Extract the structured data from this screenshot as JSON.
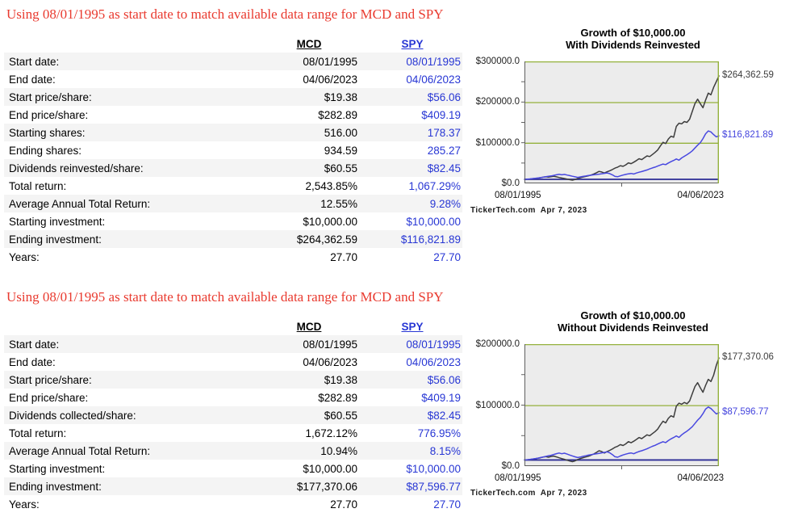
{
  "colors": {
    "title_red": "#e93a2f",
    "spy_text_blue": "#2736d4",
    "row_alt_gray": "#f4f4f4",
    "plot_background": "#ececec",
    "grid_green": "#94b13c",
    "mcd_line": "#3d3d3d",
    "spy_line": "#4848e0",
    "baseline_navy": "#2d2d96",
    "axis_gray": "#606060",
    "mcd_label_gray": "#3c3c3c",
    "spy_label_blue": "#4343dd"
  },
  "sections": [
    {
      "title": "Using 08/01/1995 as start date to match available data range for MCD and SPY",
      "table": {
        "columns": [
          "MCD",
          "SPY"
        ],
        "rows": [
          [
            "Start date:",
            "08/01/1995",
            "08/01/1995"
          ],
          [
            "End date:",
            "04/06/2023",
            "04/06/2023"
          ],
          [
            "Start price/share:",
            "$19.38",
            "$56.06"
          ],
          [
            "End price/share:",
            "$282.89",
            "$409.19"
          ],
          [
            "Starting shares:",
            "516.00",
            "178.37"
          ],
          [
            "Ending shares:",
            "934.59",
            "285.27"
          ],
          [
            "Dividends reinvested/share:",
            "$60.55",
            "$82.45"
          ],
          [
            "Total return:",
            "2,543.85%",
            "1,067.29%"
          ],
          [
            "Average Annual Total Return:",
            "12.55%",
            "9.28%"
          ],
          [
            "Starting investment:",
            "$10,000.00",
            "$10,000.00"
          ],
          [
            "Ending investment:",
            "$264,362.59",
            "$116,821.89"
          ],
          [
            "Years:",
            "27.70",
            "27.70"
          ]
        ]
      }
    },
    {
      "title": "Using 08/01/1995 as start date to match available data range for MCD and SPY",
      "table": {
        "columns": [
          "MCD",
          "SPY"
        ],
        "rows": [
          [
            "Start date:",
            "08/01/1995",
            "08/01/1995"
          ],
          [
            "End date:",
            "04/06/2023",
            "04/06/2023"
          ],
          [
            "Start price/share:",
            "$19.38",
            "$56.06"
          ],
          [
            "End price/share:",
            "$282.89",
            "$409.19"
          ],
          [
            "Dividends collected/share:",
            "$60.55",
            "$82.45"
          ],
          [
            "Total return:",
            "1,672.12%",
            "776.95%"
          ],
          [
            "Average Annual Total Return:",
            "10.94%",
            "8.15%"
          ],
          [
            "Starting investment:",
            "$10,000.00",
            "$10,000.00"
          ],
          [
            "Ending investment:",
            "$177,370.06",
            "$87,596.77"
          ],
          [
            "Years:",
            "27.70",
            "27.70"
          ]
        ]
      }
    }
  ],
  "chart_data": [
    {
      "type": "line",
      "title": "Growth of $10,000.00 With Dividends Reinvested",
      "title_lines": [
        "Growth of $10,000.00",
        "With Dividends Reinvested"
      ],
      "xlabel": "",
      "ylabel": "",
      "x_labels": [
        "08/01/1995",
        "04/06/2023"
      ],
      "ylim": [
        0,
        300000
      ],
      "tick_step": 50000,
      "gridlines": [
        300000,
        200000,
        100000
      ],
      "grid": true,
      "legend_position": "none",
      "baseline": 10000,
      "y_ticks": [
        {
          "label": "$300000.0",
          "value": 300000
        },
        {
          "label": "$200000.0",
          "value": 200000
        },
        {
          "label": "$100000.0",
          "value": 100000
        },
        {
          "label": "$0.0",
          "value": 0
        }
      ],
      "end_labels": [
        {
          "text": "$264,362.59",
          "value": 264363,
          "color": "#3c3c3c"
        },
        {
          "text": "$116,821.89",
          "value": 116822,
          "color": "#4343dd"
        }
      ],
      "footer": "TickerTech.com  Apr 7, 2023",
      "series": [
        {
          "name": "MCD",
          "color": "#3d3d3d",
          "values": [
            10000,
            10300,
            10800,
            11500,
            12200,
            13000,
            14000,
            15200,
            16000,
            15200,
            16500,
            17200,
            16000,
            14500,
            13200,
            12000,
            10500,
            9200,
            8000,
            9500,
            12000,
            14000,
            15500,
            17000,
            18500,
            20500,
            23000,
            26000,
            29500,
            28000,
            25500,
            28500,
            31000,
            34000,
            37500,
            40000,
            43500,
            42000,
            45500,
            50500,
            48500,
            52000,
            56000,
            60500,
            58500,
            63000,
            67500,
            66000,
            71000,
            76000,
            82000,
            92000,
            101000,
            98000,
            109000,
            116000,
            113500,
            140000,
            148000,
            146500,
            152000,
            150000,
            158000,
            177000,
            196000,
            207000,
            196000,
            186000,
            205000,
            222000,
            218000,
            236000,
            250000,
            264363
          ]
        },
        {
          "name": "SPY",
          "color": "#4848e0",
          "values": [
            10000,
            10400,
            11000,
            11800,
            12400,
            13200,
            14200,
            15000,
            16200,
            17400,
            18200,
            19600,
            21000,
            22200,
            21000,
            22000,
            20500,
            19000,
            17500,
            16000,
            14800,
            15800,
            17000,
            18000,
            19200,
            20000,
            21000,
            21800,
            22600,
            23600,
            24600,
            25600,
            24000,
            21000,
            17000,
            16200,
            18500,
            20500,
            22000,
            23500,
            24500,
            23000,
            25500,
            27500,
            29000,
            31000,
            33000,
            35500,
            38000,
            40000,
            42500,
            45000,
            47500,
            46000,
            50000,
            53500,
            56500,
            60000,
            57000,
            62500,
            66500,
            70500,
            75000,
            80000,
            87000,
            94000,
            100000,
            110000,
            122000,
            129000,
            126500,
            120000,
            114500,
            116822
          ]
        }
      ]
    },
    {
      "type": "line",
      "title": "Growth of $10,000.00 Without Dividends Reinvested",
      "title_lines": [
        "Growth of $10,000.00",
        "Without Dividends Reinvested"
      ],
      "xlabel": "",
      "ylabel": "",
      "x_labels": [
        "08/01/1995",
        "04/06/2023"
      ],
      "ylim": [
        0,
        200000
      ],
      "tick_step": 50000,
      "gridlines": [
        200000,
        100000
      ],
      "grid": true,
      "legend_position": "none",
      "baseline": 10000,
      "y_ticks": [
        {
          "label": "$200000.0",
          "value": 200000
        },
        {
          "label": "$100000.0",
          "value": 100000
        },
        {
          "label": "$0.0",
          "value": 0
        }
      ],
      "end_labels": [
        {
          "text": "$177,370.06",
          "value": 177370,
          "color": "#3c3c3c"
        },
        {
          "text": "$87,596.77",
          "value": 87597,
          "color": "#4343dd"
        }
      ],
      "footer": "TickerTech.com  Apr 7, 2023",
      "series": [
        {
          "name": "MCD",
          "color": "#3d3d3d",
          "values": [
            10000,
            10300,
            10700,
            11400,
            12000,
            12800,
            13700,
            14800,
            15500,
            14600,
            15800,
            16400,
            15100,
            13600,
            12300,
            11100,
            9700,
            8400,
            7300,
            8600,
            10800,
            12500,
            13800,
            15000,
            16200,
            17900,
            19900,
            22400,
            25200,
            23800,
            21500,
            23900,
            25800,
            28100,
            30800,
            32600,
            35200,
            33800,
            36400,
            40100,
            38300,
            40800,
            43700,
            46900,
            45000,
            48200,
            51300,
            49800,
            53200,
            56600,
            60600,
            67500,
            73600,
            70900,
            78300,
            82700,
            80300,
            98300,
            103200,
            101400,
            104400,
            102300,
            106900,
            118800,
            130500,
            136800,
            128500,
            121000,
            132400,
            142300,
            138700,
            149000,
            165000,
            177370
          ]
        },
        {
          "name": "SPY",
          "color": "#4848e0",
          "values": [
            10000,
            10400,
            10900,
            11700,
            12300,
            13000,
            14000,
            14800,
            15900,
            17000,
            17800,
            19100,
            20400,
            21500,
            20300,
            21200,
            19700,
            18200,
            16700,
            15200,
            14000,
            14900,
            16000,
            16900,
            18000,
            18700,
            19500,
            20200,
            20900,
            21700,
            22500,
            23400,
            21800,
            19000,
            15300,
            14600,
            16600,
            18300,
            19600,
            20800,
            21600,
            20200,
            22300,
            24000,
            25200,
            26800,
            28400,
            30500,
            32500,
            34100,
            36100,
            38100,
            40000,
            38600,
            41800,
            44600,
            46900,
            49600,
            47000,
            51300,
            54400,
            57400,
            60800,
            64600,
            70000,
            75300,
            79800,
            86000,
            93500,
            97000,
            94500,
            90000,
            85500,
            87597
          ]
        }
      ]
    }
  ]
}
